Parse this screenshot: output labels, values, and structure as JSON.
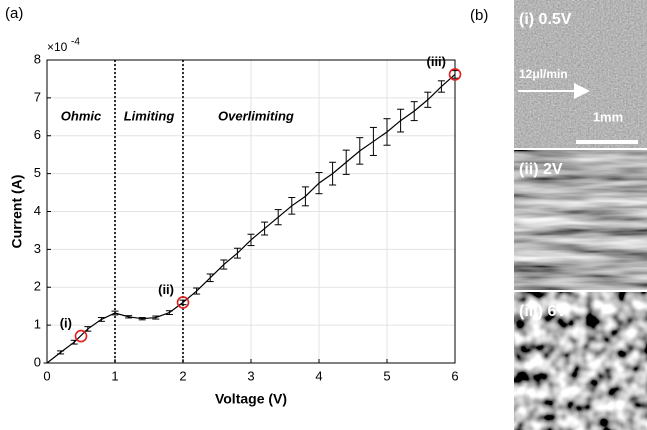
{
  "chart_data": {
    "type": "line",
    "panel_label": "(a)",
    "xlabel": "Voltage (V)",
    "ylabel": "Current (A)",
    "y_multiplier": {
      "base": "×10",
      "exponent": "-4"
    },
    "x": [
      0,
      0.2,
      0.4,
      0.6,
      0.8,
      1.0,
      1.2,
      1.4,
      1.6,
      1.8,
      2.0,
      2.2,
      2.4,
      2.6,
      2.8,
      3.0,
      3.2,
      3.4,
      3.6,
      3.8,
      4.0,
      4.2,
      4.4,
      4.6,
      4.8,
      5.0,
      5.2,
      5.4,
      5.6,
      5.8,
      6.0
    ],
    "series": [
      {
        "color": "#000000",
        "values": [
          0,
          0.28,
          0.55,
          0.9,
          1.15,
          1.32,
          1.22,
          1.17,
          1.2,
          1.33,
          1.6,
          1.9,
          2.25,
          2.6,
          2.9,
          3.25,
          3.55,
          3.85,
          4.15,
          4.4,
          4.75,
          5.0,
          5.3,
          5.6,
          5.85,
          6.1,
          6.4,
          6.65,
          6.95,
          7.3,
          7.62
        ],
        "errors": [
          0,
          0.04,
          0.05,
          0.06,
          0.05,
          0.05,
          0.03,
          0.03,
          0.04,
          0.05,
          0.06,
          0.08,
          0.1,
          0.12,
          0.13,
          0.15,
          0.17,
          0.2,
          0.22,
          0.25,
          0.28,
          0.3,
          0.32,
          0.35,
          0.37,
          0.35,
          0.3,
          0.25,
          0.2,
          0.15,
          0.1
        ]
      }
    ],
    "highlights": [
      {
        "label": "(i)",
        "x": 0.5,
        "y": 0.71,
        "color": "#e02020"
      },
      {
        "label": "(ii)",
        "x": 2.0,
        "y": 1.6,
        "color": "#e02020"
      },
      {
        "label": "(iii)",
        "x": 6.0,
        "y": 7.62,
        "color": "#e02020"
      }
    ],
    "vlines": [
      1,
      2
    ],
    "region_labels": [
      "Ohmic",
      "Limiting",
      "Overlimiting"
    ],
    "xlim": [
      0,
      6
    ],
    "xticks": [
      0,
      1,
      2,
      3,
      4,
      5,
      6
    ],
    "ylim": [
      0,
      8
    ],
    "yticks": [
      0,
      1,
      2,
      3,
      4,
      5,
      6,
      7,
      8
    ],
    "grid": true
  },
  "panel_b": {
    "label": "(b)",
    "images": [
      {
        "label": "(i) 0.5V"
      },
      {
        "label": "(ii) 2V"
      },
      {
        "label": "(iii) 6V"
      }
    ],
    "flow_rate": "12μl/min",
    "scale_bar": "1mm"
  }
}
